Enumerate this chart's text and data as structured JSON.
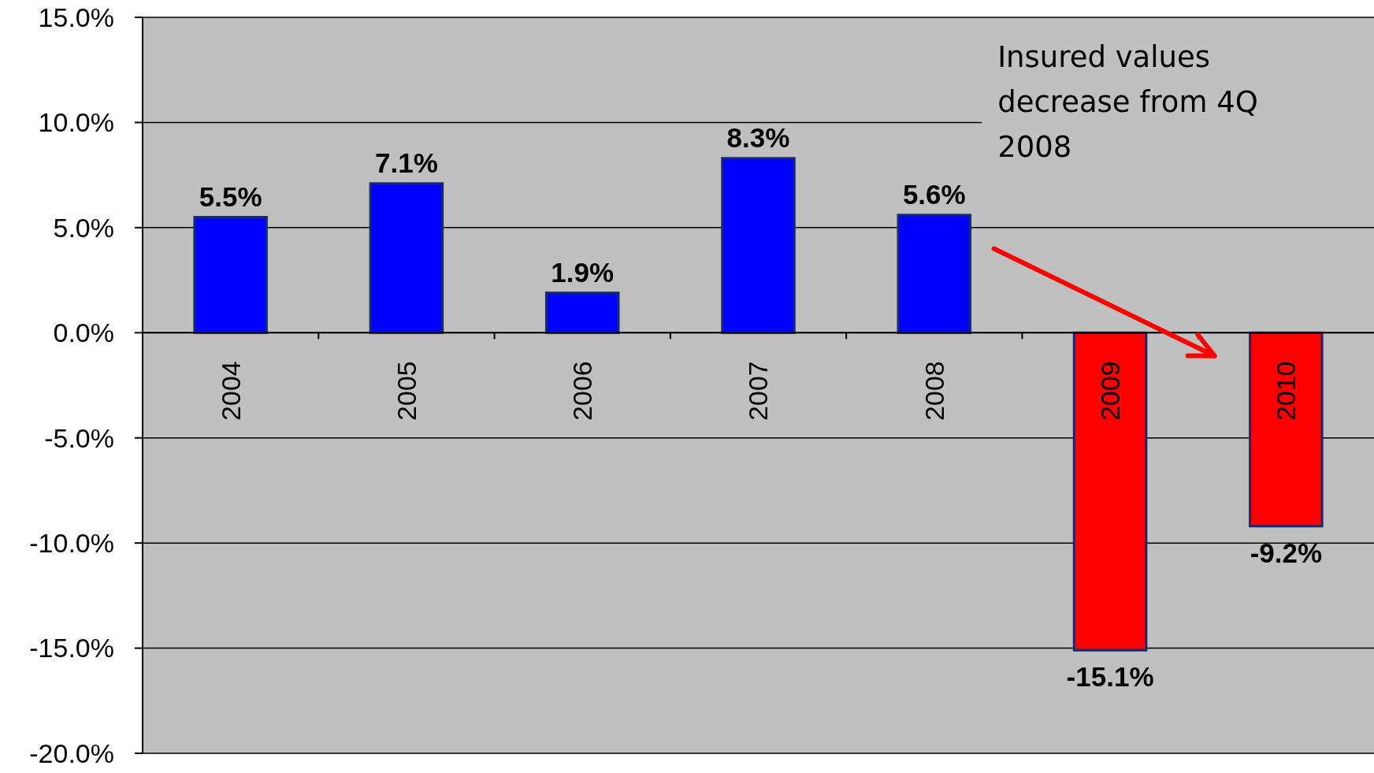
{
  "chart_data": {
    "type": "bar",
    "categories": [
      "2004",
      "2005",
      "2006",
      "2007",
      "2008",
      "2009",
      "2010"
    ],
    "values": [
      5.5,
      7.1,
      1.9,
      8.3,
      5.6,
      -15.1,
      -9.2
    ],
    "colors": [
      "#0000ff",
      "#0000ff",
      "#0000ff",
      "#0000ff",
      "#0000ff",
      "#ff0000",
      "#ff0000"
    ],
    "value_labels": [
      "5.5%",
      "7.1%",
      "1.9%",
      "8.3%",
      "5.6%",
      "-15.1%",
      "-9.2%"
    ],
    "ylim": [
      -20,
      15
    ],
    "yticks": [
      {
        "value": -20,
        "label": "-20.0%"
      },
      {
        "value": -15,
        "label": "-15.0%"
      },
      {
        "value": -10,
        "label": "-10.0%"
      },
      {
        "value": -5,
        "label": "-5.0%"
      },
      {
        "value": 0,
        "label": "0.0%"
      },
      {
        "value": 5,
        "label": "5.0%"
      },
      {
        "value": 10,
        "label": "10.0%"
      },
      {
        "value": 15,
        "label": "15.0%"
      }
    ],
    "grid": "y",
    "annotations": [
      "Insured values decrease from 4Q 2008"
    ]
  }
}
